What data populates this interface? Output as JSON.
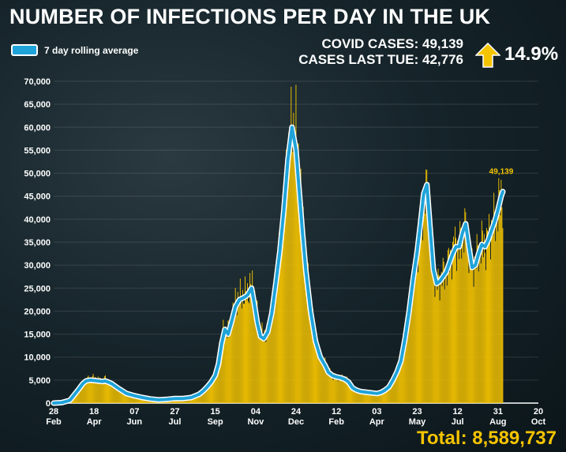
{
  "header": {
    "title": "NUMBER OF INFECTIONS PER DAY IN THE UK",
    "legend_label": "7 day rolling average",
    "covid_cases": "COVID CASES: 49,139",
    "cases_last_tue": "CASES LAST TUE: 42,776",
    "change_pct": "14.9%",
    "total": "Total: 8,589,737"
  },
  "colors": {
    "bars": "#f5c400",
    "line": "#1fa3d9",
    "line_outline": "#ffffff",
    "arrow": "#f5c400"
  },
  "chart_data": {
    "type": "area",
    "x_axis": "days since 28 Feb 2020 (ticks printed as day-month)",
    "xlim": [
      0,
      600
    ],
    "ylim": [
      0,
      70000
    ],
    "yticks": [
      0,
      5000,
      10000,
      15000,
      20000,
      25000,
      30000,
      35000,
      40000,
      45000,
      50000,
      55000,
      60000,
      65000,
      70000
    ],
    "ytick_labels": [
      "0",
      "5,000",
      "10,000",
      "15,000",
      "20,000",
      "25,000",
      "30,000",
      "35,000",
      "40,000",
      "45,000",
      "50,000",
      "55,000",
      "60,000",
      "65,000",
      "70,000"
    ],
    "xticks": [
      {
        "day": 0,
        "top": "28",
        "bottom": "Feb"
      },
      {
        "day": 50,
        "top": "18",
        "bottom": "Apr"
      },
      {
        "day": 100,
        "top": "07",
        "bottom": "Jun"
      },
      {
        "day": 150,
        "top": "27",
        "bottom": "Jul"
      },
      {
        "day": 200,
        "top": "15",
        "bottom": "Sep"
      },
      {
        "day": 250,
        "top": "04",
        "bottom": "Nov"
      },
      {
        "day": 300,
        "top": "24",
        "bottom": "Dec"
      },
      {
        "day": 350,
        "top": "12",
        "bottom": "Feb"
      },
      {
        "day": 400,
        "top": "03",
        "bottom": "Apr"
      },
      {
        "day": 450,
        "top": "23",
        "bottom": "May"
      },
      {
        "day": 500,
        "top": "12",
        "bottom": "Jul"
      },
      {
        "day": 550,
        "top": "31",
        "bottom": "Aug"
      },
      {
        "day": 600,
        "top": "20",
        "bottom": "Oct"
      }
    ],
    "series": [
      {
        "name": "Daily cases",
        "style": "bars",
        "points": [
          [
            0,
            100
          ],
          [
            10,
            200
          ],
          [
            20,
            600
          ],
          [
            30,
            2800
          ],
          [
            36,
            4200
          ],
          [
            40,
            5100
          ],
          [
            45,
            5400
          ],
          [
            50,
            5600
          ],
          [
            55,
            5200
          ],
          [
            60,
            5000
          ],
          [
            64,
            5400
          ],
          [
            67,
            4700
          ],
          [
            72,
            4200
          ],
          [
            80,
            3200
          ],
          [
            90,
            2100
          ],
          [
            100,
            1600
          ],
          [
            110,
            1300
          ],
          [
            120,
            900
          ],
          [
            130,
            700
          ],
          [
            140,
            800
          ],
          [
            150,
            1000
          ],
          [
            160,
            1000
          ],
          [
            170,
            1200
          ],
          [
            180,
            1900
          ],
          [
            185,
            2700
          ],
          [
            190,
            3600
          ],
          [
            195,
            4700
          ],
          [
            200,
            6000
          ],
          [
            204,
            9000
          ],
          [
            208,
            15000
          ],
          [
            212,
            16000
          ],
          [
            216,
            15500
          ],
          [
            220,
            18000
          ],
          [
            225,
            22000
          ],
          [
            230,
            23000
          ],
          [
            236,
            23500
          ],
          [
            240,
            24000
          ],
          [
            245,
            26000
          ],
          [
            248,
            24000
          ],
          [
            252,
            19000
          ],
          [
            256,
            15500
          ],
          [
            260,
            14500
          ],
          [
            265,
            15500
          ],
          [
            270,
            19000
          ],
          [
            275,
            26000
          ],
          [
            280,
            33000
          ],
          [
            285,
            42000
          ],
          [
            290,
            53000
          ],
          [
            295,
            60000
          ],
          [
            300,
            59000
          ],
          [
            304,
            50000
          ],
          [
            308,
            40000
          ],
          [
            312,
            31000
          ],
          [
            318,
            21000
          ],
          [
            324,
            14000
          ],
          [
            330,
            10500
          ],
          [
            336,
            8500
          ],
          [
            340,
            6800
          ],
          [
            345,
            6000
          ],
          [
            350,
            5600
          ],
          [
            355,
            5500
          ],
          [
            360,
            5200
          ],
          [
            365,
            4800
          ],
          [
            370,
            3400
          ],
          [
            375,
            2800
          ],
          [
            380,
            2600
          ],
          [
            385,
            2400
          ],
          [
            390,
            2300
          ],
          [
            395,
            2200
          ],
          [
            400,
            2100
          ],
          [
            405,
            2300
          ],
          [
            410,
            2800
          ],
          [
            415,
            3500
          ],
          [
            420,
            5200
          ],
          [
            425,
            7000
          ],
          [
            430,
            9500
          ],
          [
            435,
            14000
          ],
          [
            440,
            20000
          ],
          [
            445,
            27000
          ],
          [
            450,
            33000
          ],
          [
            454,
            39000
          ],
          [
            458,
            44000
          ],
          [
            462,
            46000
          ],
          [
            466,
            38000
          ],
          [
            470,
            30000
          ],
          [
            474,
            26000
          ],
          [
            478,
            27000
          ],
          [
            482,
            28000
          ],
          [
            486,
            29000
          ],
          [
            490,
            31000
          ],
          [
            494,
            33000
          ],
          [
            498,
            35000
          ],
          [
            502,
            34000
          ],
          [
            506,
            37000
          ],
          [
            510,
            38000
          ],
          [
            514,
            34000
          ],
          [
            518,
            30000
          ],
          [
            522,
            31000
          ],
          [
            526,
            33000
          ],
          [
            530,
            35000
          ],
          [
            534,
            34000
          ],
          [
            538,
            36000
          ],
          [
            542,
            38000
          ],
          [
            546,
            40000
          ],
          [
            550,
            42000
          ],
          [
            554,
            45000
          ],
          [
            556,
            45000
          ]
        ]
      },
      {
        "name": "7 day rolling average",
        "style": "line",
        "points": [
          [
            0,
            0
          ],
          [
            10,
            100
          ],
          [
            20,
            600
          ],
          [
            30,
            2800
          ],
          [
            36,
            4200
          ],
          [
            40,
            4800
          ],
          [
            45,
            5000
          ],
          [
            50,
            4900
          ],
          [
            55,
            4800
          ],
          [
            60,
            4700
          ],
          [
            64,
            4800
          ],
          [
            67,
            4600
          ],
          [
            72,
            4200
          ],
          [
            80,
            3200
          ],
          [
            90,
            2100
          ],
          [
            100,
            1600
          ],
          [
            110,
            1200
          ],
          [
            120,
            900
          ],
          [
            130,
            700
          ],
          [
            140,
            800
          ],
          [
            150,
            1000
          ],
          [
            160,
            1000
          ],
          [
            170,
            1200
          ],
          [
            180,
            1900
          ],
          [
            185,
            2600
          ],
          [
            190,
            3500
          ],
          [
            195,
            4600
          ],
          [
            200,
            6000
          ],
          [
            204,
            8500
          ],
          [
            208,
            13000
          ],
          [
            212,
            16000
          ],
          [
            216,
            15000
          ],
          [
            220,
            17500
          ],
          [
            225,
            21000
          ],
          [
            230,
            22500
          ],
          [
            236,
            23000
          ],
          [
            240,
            23500
          ],
          [
            245,
            25000
          ],
          [
            248,
            22000
          ],
          [
            252,
            17500
          ],
          [
            256,
            14500
          ],
          [
            260,
            14000
          ],
          [
            265,
            15500
          ],
          [
            270,
            19500
          ],
          [
            275,
            26000
          ],
          [
            280,
            33000
          ],
          [
            285,
            42000
          ],
          [
            290,
            53000
          ],
          [
            295,
            60000
          ],
          [
            300,
            55000
          ],
          [
            304,
            46000
          ],
          [
            308,
            37000
          ],
          [
            312,
            29000
          ],
          [
            318,
            20000
          ],
          [
            324,
            13500
          ],
          [
            330,
            10000
          ],
          [
            336,
            8200
          ],
          [
            340,
            6700
          ],
          [
            345,
            6000
          ],
          [
            350,
            5700
          ],
          [
            355,
            5500
          ],
          [
            360,
            5200
          ],
          [
            365,
            4600
          ],
          [
            370,
            3300
          ],
          [
            375,
            2800
          ],
          [
            380,
            2500
          ],
          [
            385,
            2400
          ],
          [
            390,
            2300
          ],
          [
            395,
            2200
          ],
          [
            400,
            2100
          ],
          [
            405,
            2300
          ],
          [
            410,
            2800
          ],
          [
            415,
            3500
          ],
          [
            420,
            5000
          ],
          [
            425,
            6800
          ],
          [
            430,
            9200
          ],
          [
            435,
            14000
          ],
          [
            440,
            20000
          ],
          [
            445,
            27000
          ],
          [
            450,
            33000
          ],
          [
            454,
            39000
          ],
          [
            458,
            45500
          ],
          [
            462,
            47500
          ],
          [
            466,
            38000
          ],
          [
            470,
            29000
          ],
          [
            474,
            26000
          ],
          [
            478,
            26500
          ],
          [
            482,
            27500
          ],
          [
            486,
            28500
          ],
          [
            490,
            30500
          ],
          [
            494,
            32500
          ],
          [
            498,
            34000
          ],
          [
            502,
            34000
          ],
          [
            506,
            37000
          ],
          [
            510,
            39000
          ],
          [
            514,
            34000
          ],
          [
            518,
            29500
          ],
          [
            522,
            30000
          ],
          [
            526,
            32500
          ],
          [
            530,
            34500
          ],
          [
            534,
            34000
          ],
          [
            538,
            35500
          ],
          [
            542,
            37500
          ],
          [
            546,
            39500
          ],
          [
            550,
            42000
          ],
          [
            554,
            45000
          ],
          [
            556,
            46000
          ]
        ]
      }
    ],
    "annotation": {
      "day": 556,
      "value": 49139,
      "label": "49,139"
    }
  }
}
